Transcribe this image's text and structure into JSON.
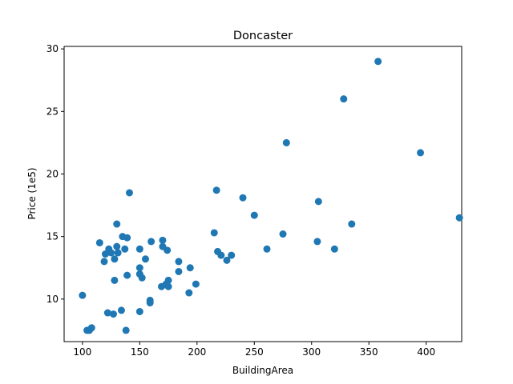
{
  "chart_data": {
    "type": "scatter",
    "title": "Doncaster",
    "xlabel": "BuildingArea",
    "ylabel": "Price (1e5)",
    "xlim": [
      84,
      431
    ],
    "ylim": [
      6.6,
      30.2
    ],
    "xticks": [
      100,
      150,
      200,
      250,
      300,
      350,
      400
    ],
    "yticks": [
      10,
      15,
      20,
      25,
      30
    ],
    "grid": false,
    "legend": "none",
    "marker_color": "#1f77b4",
    "series": [
      {
        "points": [
          [
            100,
            10.3
          ],
          [
            104,
            7.5
          ],
          [
            106,
            7.5
          ],
          [
            108,
            7.7
          ],
          [
            115,
            14.5
          ],
          [
            119,
            13.0
          ],
          [
            120,
            13.6
          ],
          [
            122,
            8.9
          ],
          [
            123,
            14.0
          ],
          [
            125,
            13.7
          ],
          [
            127,
            8.8
          ],
          [
            128,
            13.2
          ],
          [
            128,
            11.5
          ],
          [
            130,
            14.2
          ],
          [
            130,
            16.0
          ],
          [
            131,
            13.7
          ],
          [
            134,
            9.1
          ],
          [
            135,
            15.0
          ],
          [
            137,
            14.0
          ],
          [
            138,
            7.5
          ],
          [
            139,
            11.9
          ],
          [
            139,
            14.9
          ],
          [
            141,
            18.5
          ],
          [
            150,
            9.0
          ],
          [
            150,
            12.0
          ],
          [
            150,
            12.5
          ],
          [
            150,
            14.0
          ],
          [
            152,
            11.7
          ],
          [
            155,
            13.2
          ],
          [
            159,
            9.9
          ],
          [
            159,
            9.7
          ],
          [
            160,
            14.6
          ],
          [
            169,
            11.0
          ],
          [
            170,
            14.2
          ],
          [
            170,
            14.7
          ],
          [
            173,
            11.2
          ],
          [
            174,
            13.9
          ],
          [
            175,
            11.5
          ],
          [
            175,
            11.0
          ],
          [
            184,
            13.0
          ],
          [
            184,
            12.2
          ],
          [
            193,
            10.5
          ],
          [
            194,
            12.5
          ],
          [
            199,
            11.2
          ],
          [
            215,
            15.3
          ],
          [
            217,
            18.7
          ],
          [
            218,
            13.8
          ],
          [
            221,
            13.5
          ],
          [
            226,
            13.1
          ],
          [
            230,
            13.5
          ],
          [
            240,
            18.1
          ],
          [
            250,
            16.7
          ],
          [
            261,
            14.0
          ],
          [
            275,
            15.2
          ],
          [
            278,
            22.5
          ],
          [
            305,
            14.6
          ],
          [
            306,
            17.8
          ],
          [
            320,
            14.0
          ],
          [
            328,
            26.0
          ],
          [
            335,
            16.0
          ],
          [
            358,
            29.0
          ],
          [
            395,
            21.7
          ],
          [
            429,
            16.5
          ]
        ]
      }
    ]
  }
}
